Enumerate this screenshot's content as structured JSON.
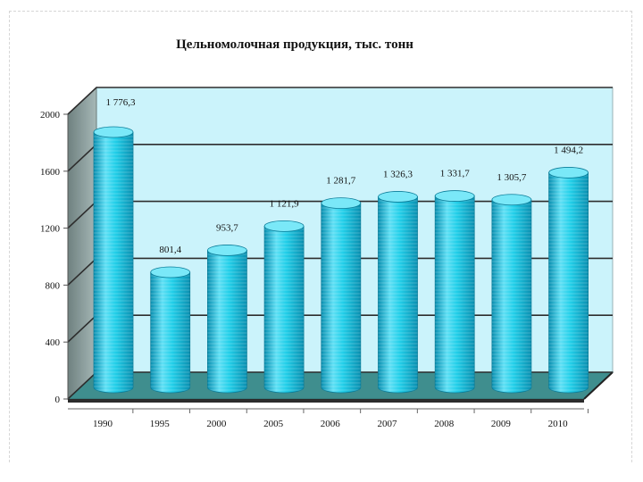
{
  "chart_data": {
    "type": "bar",
    "title": "Цельномолочная продукция, тыс. тонн",
    "categories": [
      "1990",
      "1995",
      "2000",
      "2005",
      "2006",
      "2007",
      "2008",
      "2009",
      "2010"
    ],
    "values": [
      1776.3,
      801.4,
      953.7,
      1121.9,
      1281.7,
      1326.3,
      1331.7,
      1305.7,
      1494.2
    ],
    "value_labels": [
      "1 776,3",
      "801,4",
      "953,7",
      "1 121,9",
      "1 281,7",
      "1 326,3",
      "1 331,7",
      "1 305,7",
      "1 494,2"
    ],
    "y_ticks": [
      "0",
      "400",
      "800",
      "1200",
      "1600",
      "2000"
    ],
    "ylim": [
      0,
      2000
    ],
    "grid": true,
    "style": "3d-cylinder",
    "colors": {
      "bar": "#14c8e6",
      "bar_dark": "#0a8fb0",
      "bar_light": "#7ae8f8",
      "wall": "#cbf3fb",
      "wall_side": "#889a99",
      "floor": "#3f8e8e",
      "grid": "#2d2d2d"
    }
  }
}
